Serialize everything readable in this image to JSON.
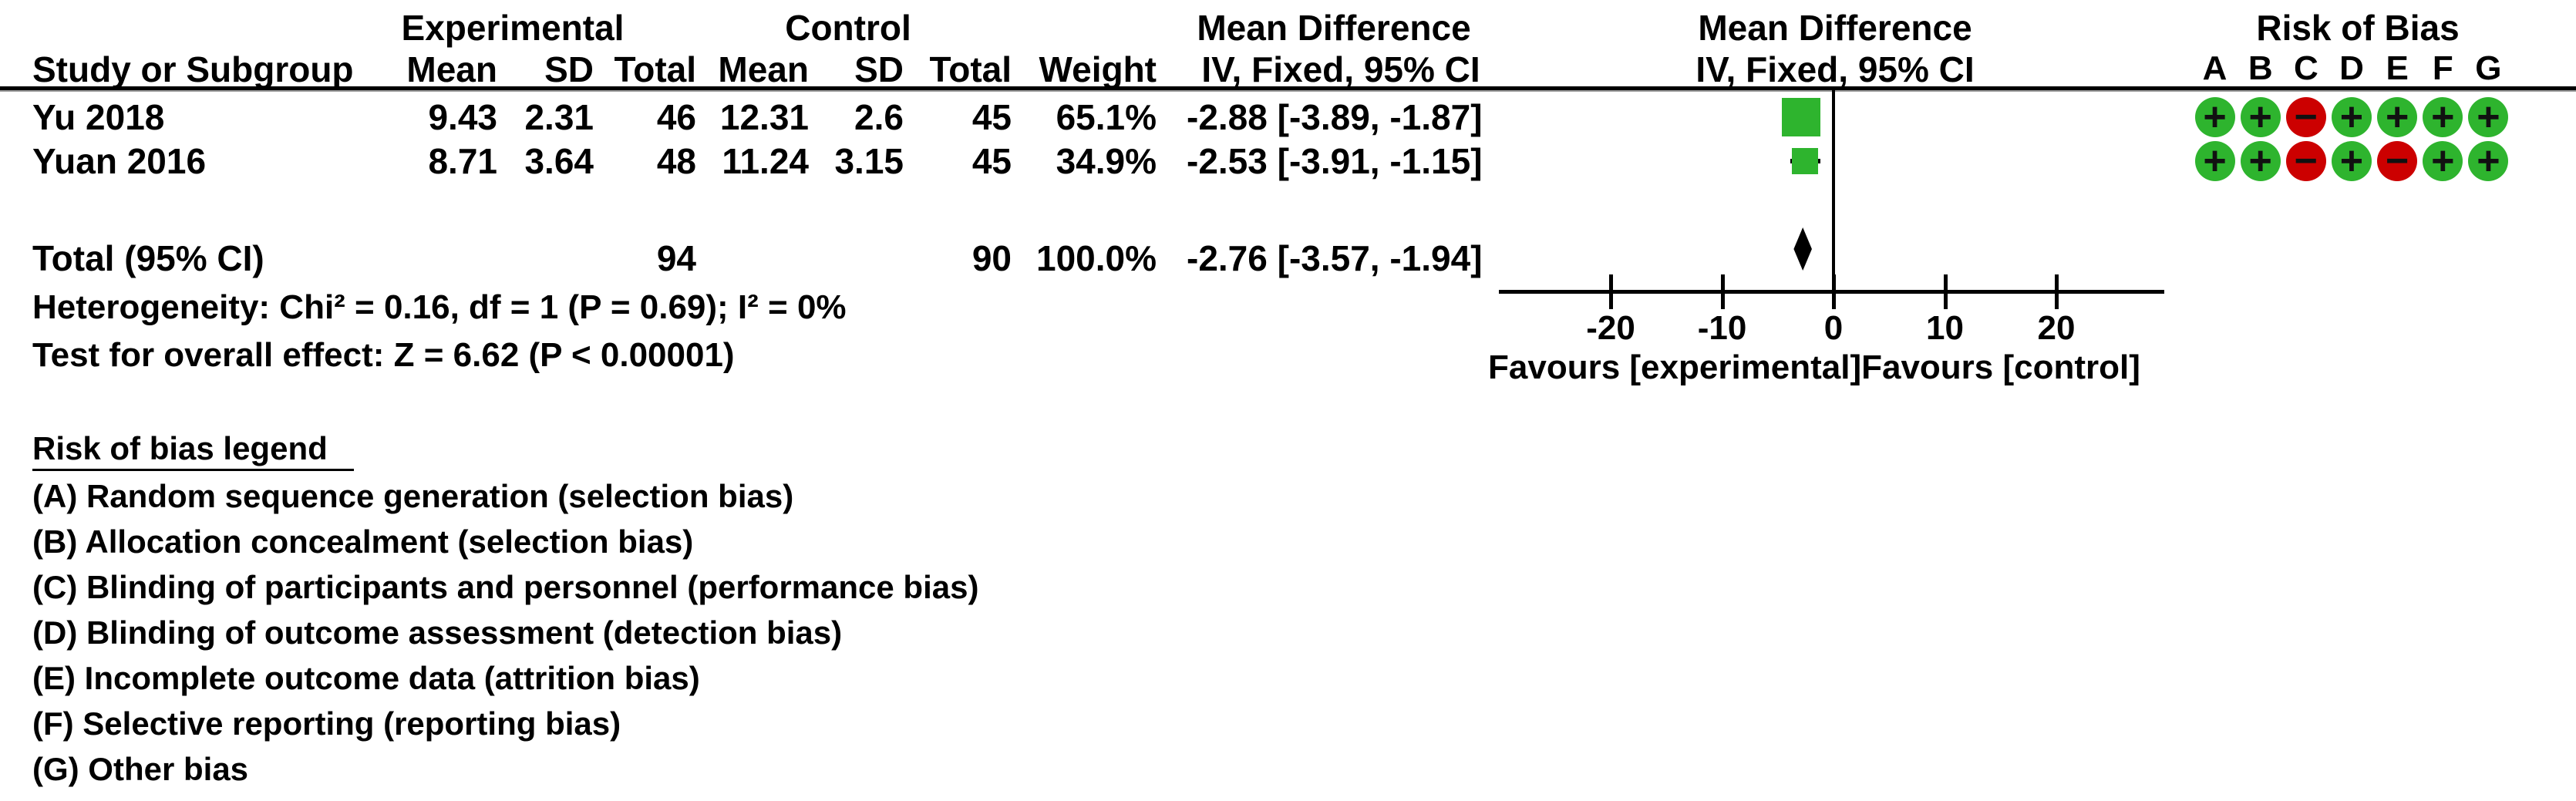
{
  "header": {
    "group_experimental": "Experimental",
    "group_control": "Control",
    "col_study": "Study or Subgroup",
    "col_mean": "Mean",
    "col_sd": "SD",
    "col_total": "Total",
    "col_weight": "Weight",
    "md_label": "Mean Difference",
    "md_method": "IV, Fixed, 95% CI",
    "rob_title": "Risk of Bias",
    "rob_letters": [
      "A",
      "B",
      "C",
      "D",
      "E",
      "F",
      "G"
    ]
  },
  "chart_data": {
    "type": "forest",
    "effect_measure": "Mean Difference",
    "method": "IV, Fixed, 95% CI",
    "studies": [
      {
        "name": "Yu 2018",
        "exp": {
          "mean": "9.43",
          "sd": "2.31",
          "total": "46"
        },
        "ctl": {
          "mean": "12.31",
          "sd": "2.6",
          "total": "45"
        },
        "weight_pct": 65.1,
        "weight_str": "65.1%",
        "md": -2.88,
        "ci_low": -3.89,
        "ci_high": -1.87,
        "ci_str": "-2.88 [-3.89, -1.87]",
        "risk_of_bias": [
          "+",
          "+",
          "-",
          "+",
          "+",
          "+",
          "+"
        ]
      },
      {
        "name": "Yuan 2016",
        "exp": {
          "mean": "8.71",
          "sd": "3.64",
          "total": "48"
        },
        "ctl": {
          "mean": "11.24",
          "sd": "3.15",
          "total": "45"
        },
        "weight_pct": 34.9,
        "weight_str": "34.9%",
        "md": -2.53,
        "ci_low": -3.91,
        "ci_high": -1.15,
        "ci_str": "-2.53 [-3.91, -1.15]",
        "risk_of_bias": [
          "+",
          "+",
          "-",
          "+",
          "-",
          "+",
          "+"
        ]
      }
    ],
    "total": {
      "label": "Total (95% CI)",
      "exp_total": "94",
      "ctl_total": "90",
      "weight_str": "100.0%",
      "md": -2.76,
      "ci_low": -3.57,
      "ci_high": -1.94,
      "ci_str": "-2.76 [-3.57, -1.94]"
    },
    "axis": {
      "ticks": [
        -20,
        -10,
        0,
        10,
        20
      ],
      "tick_labels": [
        "-20",
        "-10",
        "0",
        "10",
        "20"
      ],
      "xlim": [
        -30,
        30
      ],
      "favours_left": "Favours [experimental]",
      "favours_right": "Favours [control]"
    },
    "heterogeneity": {
      "chi2": 0.16,
      "df": 1,
      "p": 0.69,
      "i2": "0%"
    },
    "overall_effect": {
      "z": 6.62,
      "p": "< 0.00001"
    }
  },
  "footer": {
    "heterogeneity": "Heterogeneity: Chi² = 0.16, df = 1 (P = 0.69); I² = 0%",
    "overall_effect": "Test for overall effect: Z = 6.62 (P < 0.00001)"
  },
  "legend": {
    "title": "Risk of bias legend",
    "items": [
      "(A) Random sequence generation (selection bias)",
      "(B) Allocation concealment (selection bias)",
      "(C) Blinding of participants and personnel (performance bias)",
      "(D) Blinding of outcome assessment (detection bias)",
      "(E) Incomplete outcome data (attrition bias)",
      "(F) Selective reporting (reporting bias)",
      "(G) Other bias"
    ]
  },
  "colors": {
    "low_risk_green": "#2EB42E",
    "high_risk_red": "#CC0000",
    "marker_black": "#000000",
    "symbol_dark": "#111111"
  }
}
